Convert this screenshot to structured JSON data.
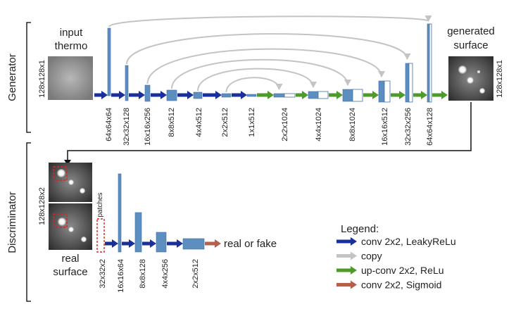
{
  "sections": {
    "generator": "Generator",
    "discriminator": "Discriminator"
  },
  "generator": {
    "input_label_line1": "input",
    "input_label_line2": "thermo",
    "input_size": "128x128x1",
    "output_label_line1": "generated",
    "output_label_line2": "surface",
    "output_size": "128x128x1",
    "encoder_layers": [
      "64x64x64",
      "32x32x128",
      "16x16x256",
      "8x8x512",
      "4x4x512",
      "2x2x512",
      "1x1x512"
    ],
    "decoder_layers": [
      "2x2x1024",
      "4x4x1024",
      "8x8x1024",
      "16x16x512",
      "32x32x256",
      "64x64x128"
    ]
  },
  "discriminator": {
    "input_size": "128x128x2",
    "patches_label": "patches",
    "real_label_line1": "real",
    "real_label_line2": "surface",
    "layers": [
      "32x32x2",
      "16x16x64",
      "8x8x128",
      "4x4x256",
      "2x2x512"
    ],
    "output_label": "real or fake"
  },
  "legend": {
    "title": "Legend:",
    "items": [
      {
        "label": "conv 2x2, LeakyReLu",
        "color": "#1a2f9a"
      },
      {
        "label": "copy",
        "color": "#c4c4c4"
      },
      {
        "label": "up-conv 2x2, ReLu",
        "color": "#4e9a2a"
      },
      {
        "label": "conv 2x2, Sigmoid",
        "color": "#b5604a"
      }
    ]
  },
  "colors": {
    "block": "#5d8ec0",
    "block_edge": "#3f6fa6",
    "blue_arrow": "#1a2f9a",
    "green_arrow": "#4e9a2a",
    "red_arrow": "#b5604a",
    "copy_arrow": "#c4c4c4"
  }
}
